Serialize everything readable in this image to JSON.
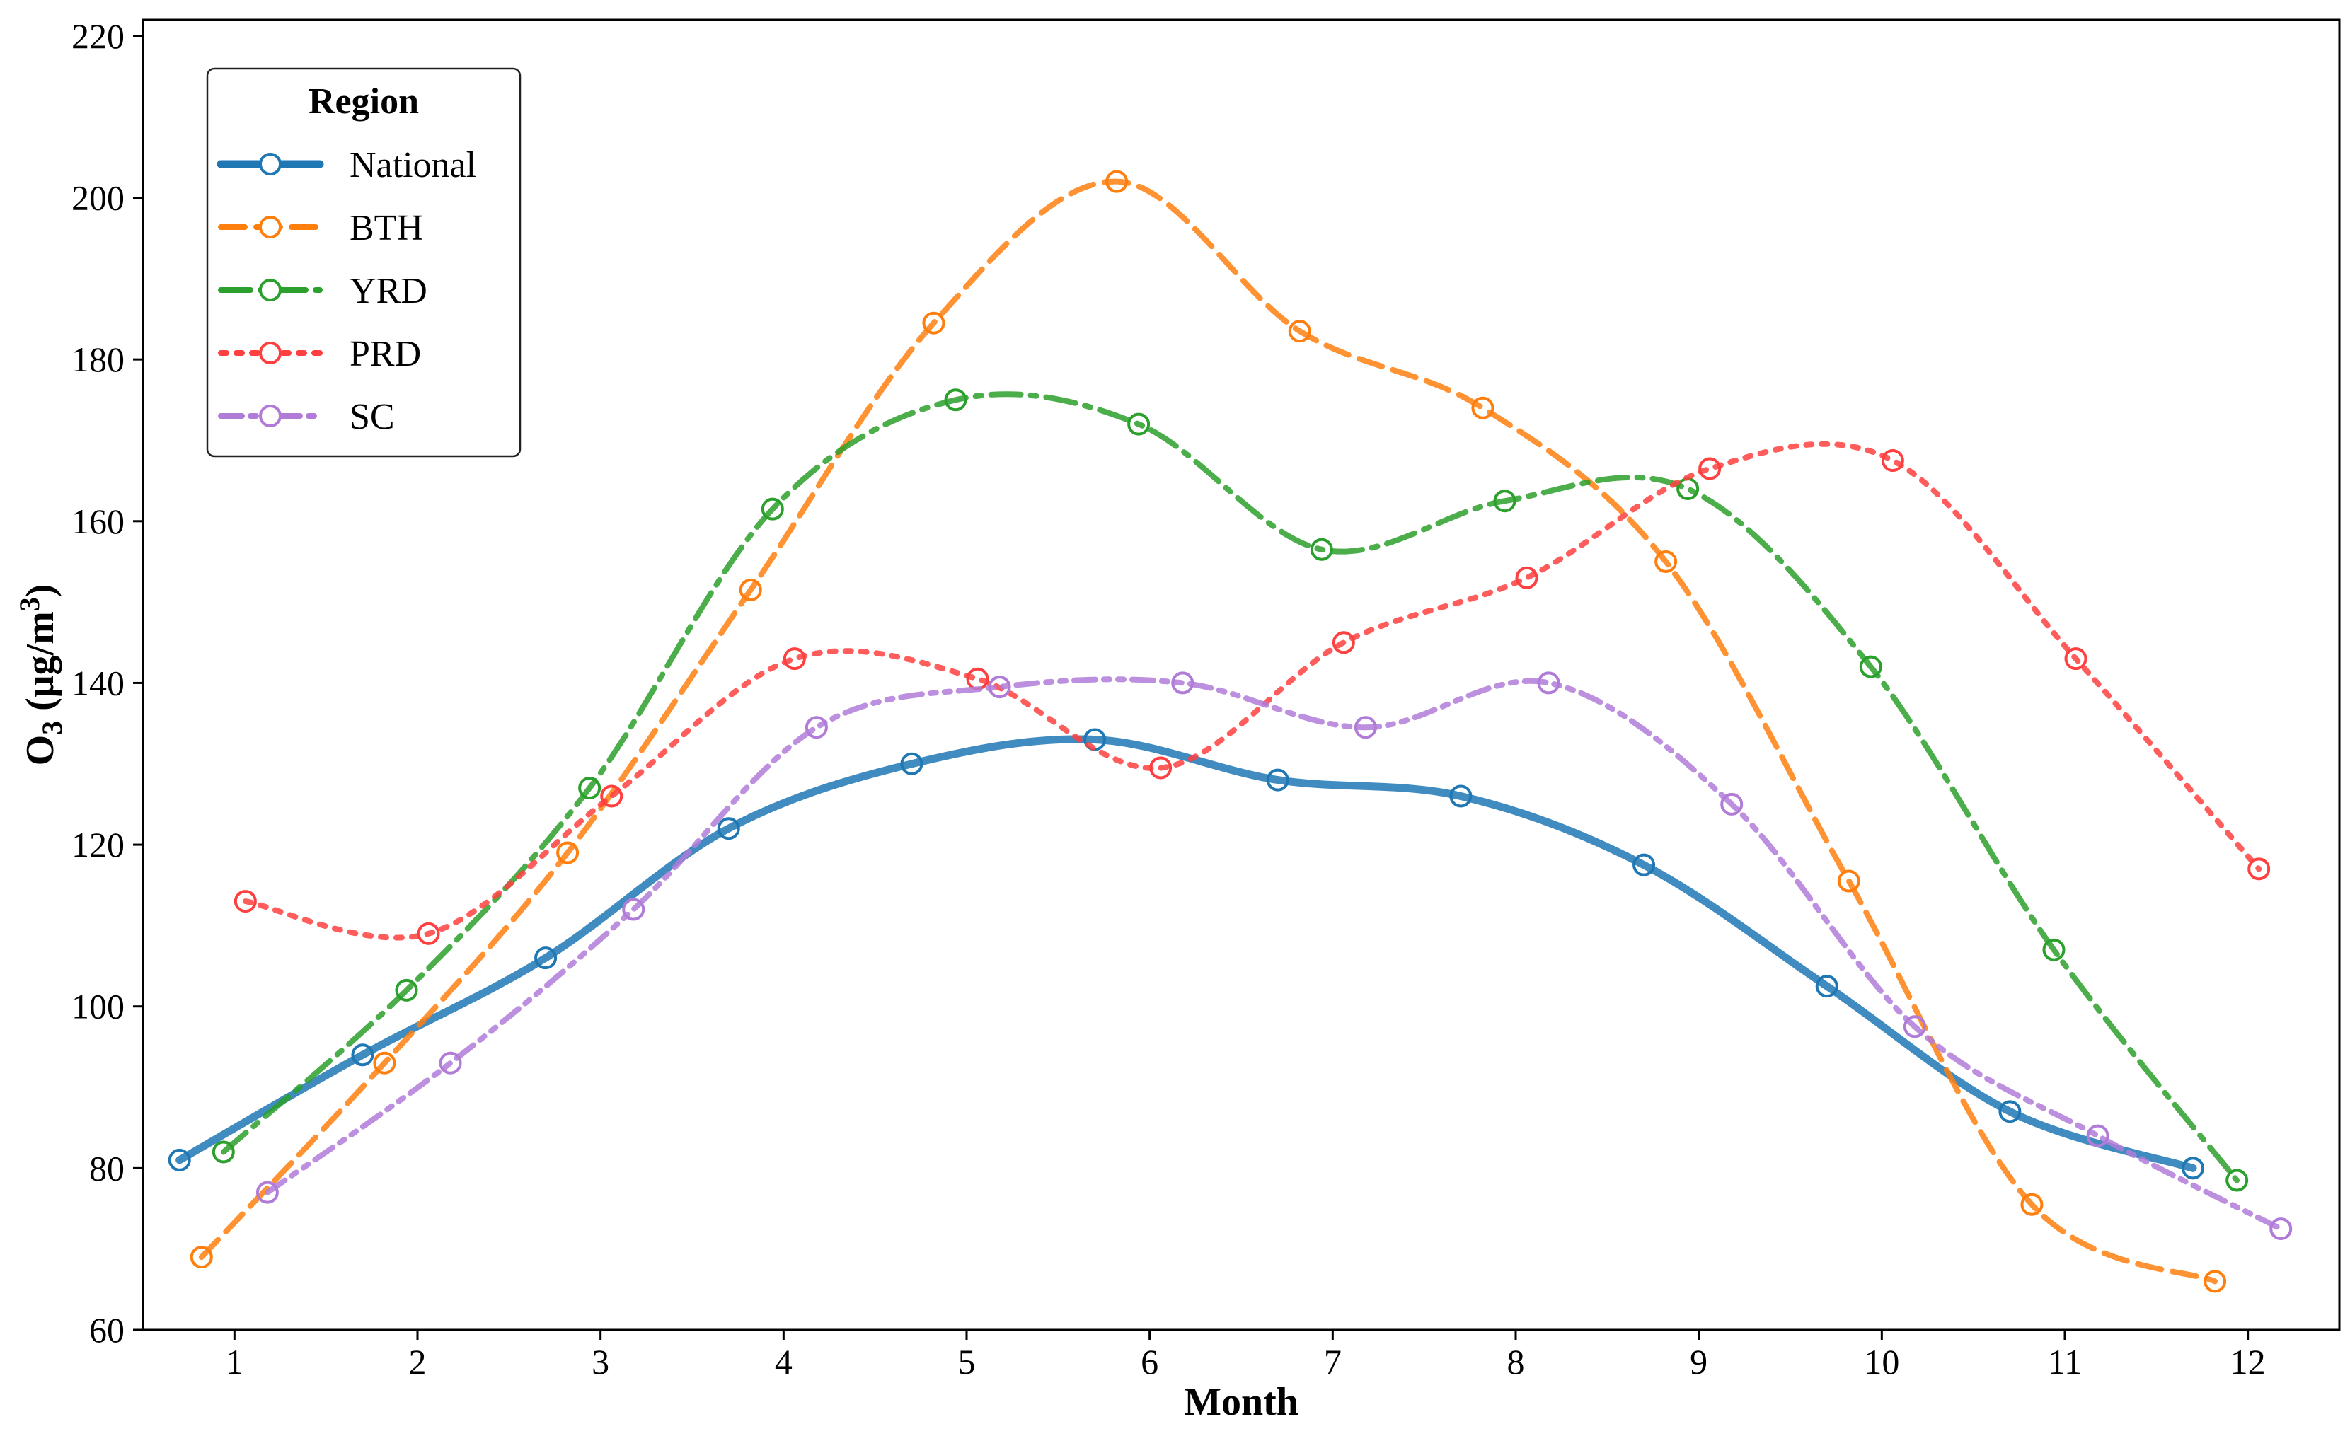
{
  "chart_data": {
    "type": "line",
    "title": "",
    "xlabel": "Month",
    "ylabel_main": "O",
    "ylabel_sub": "3",
    "ylabel_unit": " (μg/m",
    "ylabel_sup": "3",
    "ylabel_close": ")",
    "xlim": [
      0.5,
      12.5
    ],
    "ylim": [
      60,
      222
    ],
    "x_ticks": [
      1,
      2,
      3,
      4,
      5,
      6,
      7,
      8,
      9,
      10,
      11,
      12
    ],
    "x_tick_labels": [
      "1",
      "2",
      "3",
      "4",
      "5",
      "6",
      "7",
      "8",
      "9",
      "10",
      "11",
      "12"
    ],
    "y_ticks": [
      60,
      80,
      100,
      120,
      140,
      160,
      180,
      200,
      220
    ],
    "y_tick_labels": [
      "60",
      "80",
      "100",
      "120",
      "140",
      "160",
      "180",
      "200",
      "220"
    ],
    "grid": false,
    "legend": {
      "title": "Region",
      "position": "top-left"
    },
    "series": [
      {
        "name": "National",
        "color": "#1f77b4",
        "dash": "solid",
        "weight": "thick",
        "offset": -0.3,
        "values": [
          81,
          94,
          106,
          122,
          130,
          133,
          128,
          126,
          117.5,
          102.5,
          87,
          80
        ]
      },
      {
        "name": "BTH",
        "color": "#ff7f0e",
        "dash": "dashed",
        "weight": "normal",
        "offset": -0.18,
        "values": [
          69,
          93,
          119,
          151.5,
          184.5,
          202,
          183.5,
          174,
          155,
          115.5,
          75.5,
          66
        ]
      },
      {
        "name": "YRD",
        "color": "#2ca02c",
        "dash": "dashdot",
        "weight": "normal",
        "offset": -0.06,
        "values": [
          82,
          102,
          127,
          161.5,
          175,
          172,
          156.5,
          162.5,
          164,
          142,
          107,
          78.5
        ]
      },
      {
        "name": "PRD",
        "color": "#ff4040",
        "dash": "dotted",
        "weight": "normal",
        "offset": 0.06,
        "values": [
          113,
          109,
          126,
          143,
          140.5,
          129.5,
          145,
          153,
          166.5,
          167.5,
          143,
          117
        ]
      },
      {
        "name": "SC",
        "color": "#b07cd8",
        "dash": "dashdotdot",
        "weight": "normal",
        "offset": 0.18,
        "values": [
          77,
          93,
          112,
          134.5,
          139.5,
          140,
          134.5,
          140,
          125,
          97.5,
          84,
          72.5
        ]
      }
    ]
  }
}
